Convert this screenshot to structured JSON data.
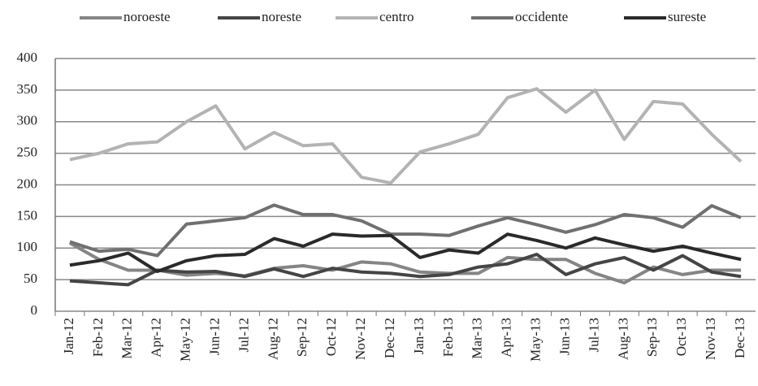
{
  "chart_data": {
    "type": "line",
    "categories": [
      "Jan-12",
      "Feb-12",
      "Mar-12",
      "Apr-12",
      "May-12",
      "Jun-12",
      "Jul-12",
      "Aug-12",
      "Sep-12",
      "Oct-12",
      "Nov-12",
      "Dec-12",
      "Jan-13",
      "Feb-13",
      "Mar-13",
      "Apr-13",
      "May-13",
      "Jun-13",
      "Jul-13",
      "Aug-13",
      "Sep-13",
      "Oct-13",
      "Nov-13",
      "Dec-13"
    ],
    "series": [
      {
        "name": "noroeste",
        "color": "#858585",
        "values": [
          108,
          82,
          65,
          65,
          57,
          60,
          56,
          68,
          72,
          65,
          78,
          75,
          62,
          60,
          60,
          85,
          82,
          82,
          60,
          45,
          70,
          58,
          65,
          65
        ]
      },
      {
        "name": "noreste",
        "color": "#454545",
        "values": [
          48,
          45,
          42,
          65,
          62,
          63,
          55,
          67,
          55,
          68,
          62,
          60,
          55,
          58,
          70,
          75,
          90,
          58,
          75,
          85,
          65,
          88,
          62,
          55
        ]
      },
      {
        "name": "centro",
        "color": "#b3b3b3",
        "values": [
          240,
          250,
          265,
          268,
          300,
          325,
          257,
          283,
          262,
          265,
          212,
          203,
          252,
          265,
          280,
          338,
          352,
          315,
          350,
          272,
          332,
          328,
          280,
          237
        ]
      },
      {
        "name": "occidente",
        "color": "#707070",
        "values": [
          110,
          95,
          98,
          88,
          138,
          143,
          148,
          168,
          153,
          153,
          143,
          122,
          122,
          120,
          135,
          148,
          137,
          125,
          137,
          153,
          148,
          133,
          167,
          148
        ]
      },
      {
        "name": "sureste",
        "color": "#2a2a2a",
        "values": [
          73,
          80,
          92,
          63,
          80,
          88,
          90,
          115,
          103,
          122,
          119,
          120,
          85,
          97,
          92,
          122,
          112,
          100,
          116,
          105,
          95,
          103,
          92,
          82
        ]
      }
    ],
    "ylim": [
      0,
      400
    ],
    "yticks": [
      0,
      50,
      100,
      150,
      200,
      250,
      300,
      350,
      400
    ],
    "grid": true
  }
}
